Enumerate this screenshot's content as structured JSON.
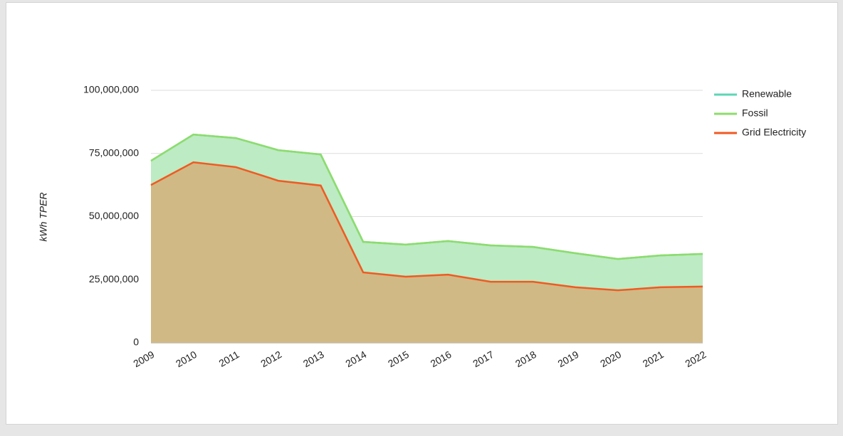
{
  "chart_data": {
    "type": "stacked-area",
    "y_label": "kWh TPER",
    "categories": [
      "2009",
      "2010",
      "2011",
      "2012",
      "2013",
      "2014",
      "2015",
      "2016",
      "2017",
      "2018",
      "2019",
      "2020",
      "2021",
      "2022"
    ],
    "series": [
      {
        "name": "Renewable",
        "color": "#5cd6b4",
        "fill": "#b3ecd9",
        "values": [
          0,
          0,
          0,
          0,
          0,
          0,
          0,
          0,
          0,
          0,
          0,
          0,
          0,
          0
        ]
      },
      {
        "name": "Fossil",
        "color": "#8edc6c",
        "fill": "#bdebc3",
        "values": [
          9600000,
          11000000,
          11500000,
          12100000,
          12300000,
          12100000,
          12700000,
          13300000,
          14400000,
          13800000,
          13500000,
          12400000,
          12600000,
          12900000
        ]
      },
      {
        "name": "Grid Electricity",
        "color": "#f05a22",
        "fill": "#d0b985",
        "values": [
          62500000,
          71500000,
          69600000,
          64200000,
          62300000,
          27900000,
          26200000,
          27000000,
          24200000,
          24200000,
          22000000,
          20800000,
          22000000,
          22300000
        ]
      }
    ],
    "ylim": [
      0,
      100000000
    ],
    "yticks": [
      0,
      {
        "value": 25000000,
        "label": "25,000,000"
      },
      {
        "value": 50000000,
        "label": "50,000,000"
      },
      {
        "value": 75000000,
        "label": "75,000,000"
      },
      {
        "value": 100000000,
        "label": "100,000,000"
      }
    ],
    "grid": true,
    "legend": "right"
  }
}
